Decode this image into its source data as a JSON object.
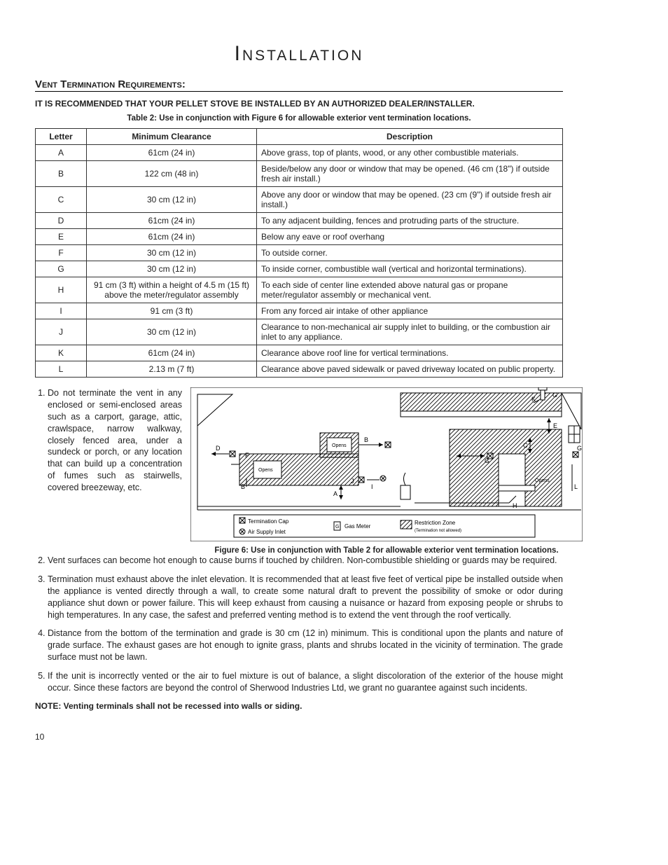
{
  "title": "Installation",
  "section_heading": "Vent Termination Requirements:",
  "recommendation": "IT IS RECOMMENDED THAT YOUR PELLET STOVE BE INSTALLED BY AN AUTHORIZED DEALER/INSTALLER.",
  "table_caption": "Table 2: Use in conjunction with Figure 6 for allowable exterior vent termination locations.",
  "columns": {
    "letter": "Letter",
    "clearance": "Minimum Clearance",
    "description": "Description"
  },
  "rows": [
    {
      "letter": "A",
      "clearance": "61cm (24 in)",
      "description": "Above grass, top of plants, wood, or any other combustible materials."
    },
    {
      "letter": "B",
      "clearance": "122 cm (48 in)",
      "description": "Beside/below any door or window that may be opened. (46 cm (18\") if outside fresh air install.)"
    },
    {
      "letter": "C",
      "clearance": "30 cm (12 in)",
      "description": "Above any door or window that may be opened. (23 cm (9\") if outside fresh air install.)"
    },
    {
      "letter": "D",
      "clearance": "61cm (24 in)",
      "description": "To any adjacent building, fences and protruding parts of the structure."
    },
    {
      "letter": "E",
      "clearance": "61cm (24 in)",
      "description": "Below any eave or roof overhang"
    },
    {
      "letter": "F",
      "clearance": "30 cm (12 in)",
      "description": "To outside corner."
    },
    {
      "letter": "G",
      "clearance": "30 cm (12 in)",
      "description": "To inside corner, combustible wall (vertical and horizontal terminations)."
    },
    {
      "letter": "H",
      "clearance": "91 cm (3 ft) within a height of 4.5 m (15 ft) above the meter/regulator assembly",
      "description": "To each side of center line extended above natural gas or propane meter/regulator assembly or mechanical vent."
    },
    {
      "letter": "I",
      "clearance": "91 cm (3 ft)",
      "description": "From any forced air intake of other appliance"
    },
    {
      "letter": "J",
      "clearance": "30 cm (12 in)",
      "description": "Clearance to non-mechanical air supply inlet to building, or the combustion air inlet to any appliance."
    },
    {
      "letter": "K",
      "clearance": "61cm (24 in)",
      "description": "Clearance above roof line for vertical terminations."
    },
    {
      "letter": "L",
      "clearance": "2.13 m (7 ft)",
      "description": "Clearance above paved sidewalk or paved driveway located on public property."
    }
  ],
  "notes": [
    "Do not terminate the vent in any enclosed or semi-enclosed areas such as a carport, garage, attic, crawlspace, narrow walkway, closely fenced area, under a sundeck or porch, or any location that can build up a concentration of fumes such as stairwells, covered breezeway, etc.",
    "Vent surfaces can become hot enough to cause burns if touched by children. Non-combustible shielding or guards may be required.",
    "Termination must exhaust above the inlet elevation. It is recommended that at least five feet of vertical pipe be installed outside when the appliance is vented directly through a wall, to create some natural draft to prevent the possibility of smoke or odor during appliance shut down or power failure. This will keep exhaust from causing a nuisance or hazard from exposing people or shrubs to high temperatures. In any case, the safest and preferred venting method is to extend the vent through the roof vertically.",
    "Distance from the bottom of the termination and grade is 30 cm (12 in) minimum. This is conditional upon the plants and nature of grade surface. The exhaust gases are hot enough to ignite grass, plants and shrubs located in the vicinity of termination. The grade surface must not be lawn.",
    "If the unit is incorrectly vented or the air to fuel mixture is out of balance, a slight discoloration of the exterior of the house might occur. Since these factors are beyond the control of Sherwood Industries Ltd, we grant no guarantee against such incidents."
  ],
  "note_bold": "NOTE: Venting terminals shall not be recessed into walls or siding.",
  "figure_caption": "Figure 6: Use in conjunction with Table 2 for allowable exterior vent termination locations.",
  "legend": {
    "term_cap": "Termination Cap",
    "air_inlet": "Air Supply Inlet",
    "gas_meter": "Gas Meter",
    "restriction": "Restriction Zone",
    "restriction_sub": "(Termination not allowed)"
  },
  "diagram_labels": {
    "A": "A",
    "B": "B",
    "C": "C",
    "D": "D",
    "E": "E",
    "F": "F",
    "G": "G",
    "H": "H",
    "I": "I",
    "J": "J",
    "K": "K",
    "L": "L",
    "opens": "Opens"
  },
  "page_number": "10",
  "styles": {
    "title_font": "Copperplate",
    "title_size_pt": 24,
    "body_size_pt": 10,
    "table_border_color": "#333333",
    "text_color": "#222222",
    "background": "#ffffff"
  }
}
